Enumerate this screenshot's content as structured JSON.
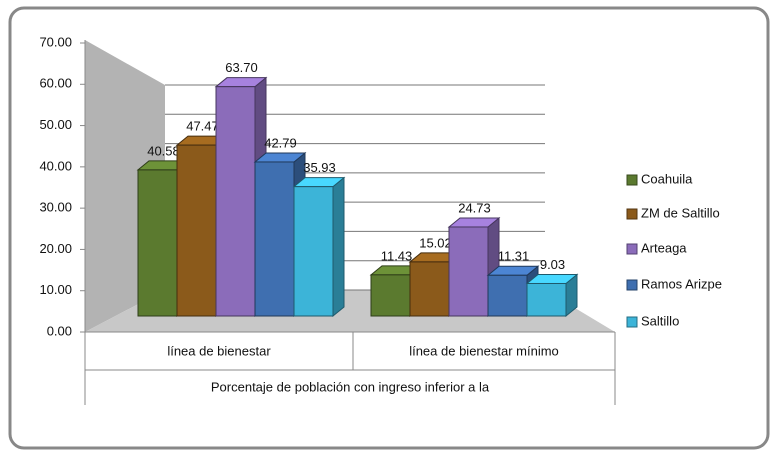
{
  "chart_data": {
    "type": "bar3d",
    "categories": [
      "línea de bienestar",
      "línea de bienestar mínimo"
    ],
    "xlabel": "Porcentaje de población con ingreso inferior a la",
    "series": [
      {
        "name": "Coahuila",
        "color": "#5b7a2f",
        "values": [
          40.58,
          11.43
        ],
        "value_labels": [
          "40.58",
          "11.43"
        ]
      },
      {
        "name": "ZM de Saltillo",
        "color": "#8b5a1b",
        "values": [
          47.47,
          15.02
        ],
        "value_labels": [
          "47.47",
          "15.02"
        ]
      },
      {
        "name": "Arteaga",
        "color": "#8b6cba",
        "values": [
          63.7,
          24.73
        ],
        "value_labels": [
          "63.70",
          "24.73"
        ]
      },
      {
        "name": "Ramos Arizpe",
        "color": "#3f6fb0",
        "values": [
          42.79,
          11.31
        ],
        "value_labels": [
          "42.79",
          "11.31"
        ]
      },
      {
        "name": "Saltillo",
        "color": "#3cb4d8",
        "values": [
          35.93,
          9.03
        ],
        "value_labels": [
          "35.93",
          "9.03"
        ]
      }
    ],
    "ylim": [
      0,
      70
    ],
    "yticks": [
      {
        "value": 0,
        "label": "0.00"
      },
      {
        "value": 10,
        "label": "10.00"
      },
      {
        "value": 20,
        "label": "20.00"
      },
      {
        "value": 30,
        "label": "30.00"
      },
      {
        "value": 40,
        "label": "40.00"
      },
      {
        "value": 50,
        "label": "50.00"
      },
      {
        "value": 60,
        "label": "60.00"
      },
      {
        "value": 70,
        "label": "70.00"
      }
    ],
    "grid": true,
    "legend": "right"
  }
}
